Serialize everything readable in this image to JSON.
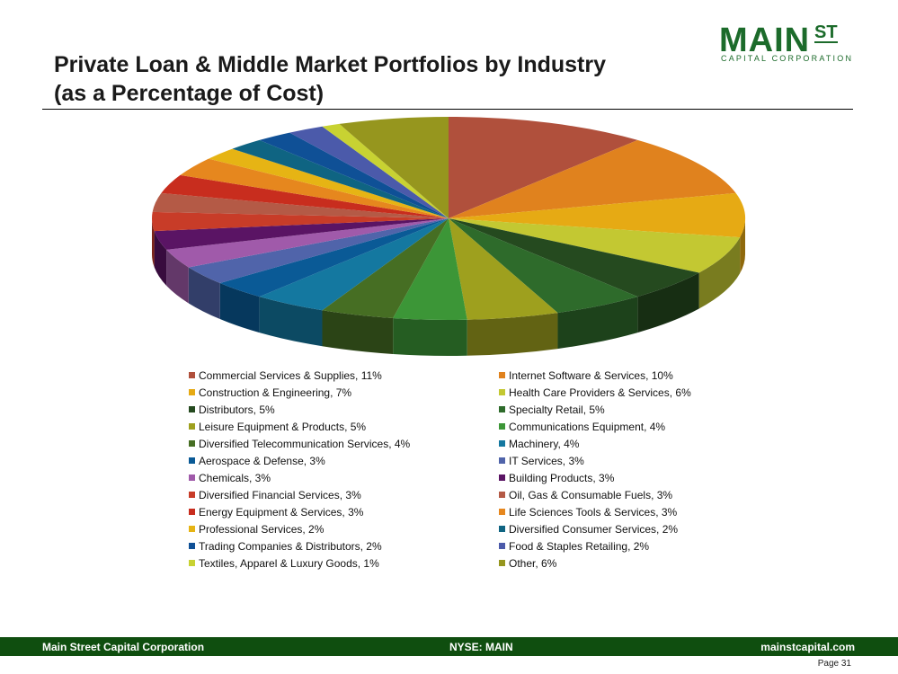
{
  "header": {
    "title": "Private Loan & Middle Market Portfolios by Industry\n(as a Percentage of Cost)"
  },
  "logo": {
    "main": "MAIN",
    "superscript": "ST",
    "subtitle": "CAPITAL CORPORATION",
    "color": "#1c6b2b"
  },
  "chart_data": {
    "type": "pie",
    "style": "3d",
    "legend_position": "bottom",
    "slices": [
      {
        "label": "Commercial Services & Supplies, 11%",
        "name": "Commercial Services & Supplies",
        "value": 11,
        "color": "#b0503c"
      },
      {
        "label": "Internet Software & Services, 10%",
        "name": "Internet Software & Services",
        "value": 10,
        "color": "#e0821e"
      },
      {
        "label": "Construction & Engineering, 7%",
        "name": "Construction & Engineering",
        "value": 7,
        "color": "#e6aa14"
      },
      {
        "label": "Health Care Providers & Services, 6%",
        "name": "Health Care Providers & Services",
        "value": 6,
        "color": "#c3c832"
      },
      {
        "label": "Distributors, 5%",
        "name": "Distributors",
        "value": 5,
        "color": "#254a1f"
      },
      {
        "label": "Specialty Retail, 5%",
        "name": "Specialty Retail",
        "value": 5,
        "color": "#2e6b2b"
      },
      {
        "label": "Leisure Equipment & Products, 5%",
        "name": "Leisure Equipment & Products",
        "value": 5,
        "color": "#9ea01e"
      },
      {
        "label": "Communications Equipment, 4%",
        "name": "Communications Equipment",
        "value": 4,
        "color": "#3c9637"
      },
      {
        "label": "Diversified Telecommunication Services, 4%",
        "name": "Diversified Telecommunication Services",
        "value": 4,
        "color": "#466e23"
      },
      {
        "label": "Machinery, 4%",
        "name": "Machinery",
        "value": 4,
        "color": "#1478a0"
      },
      {
        "label": "Aerospace & Defense, 3%",
        "name": "Aerospace & Defense",
        "value": 3,
        "color": "#0a5a96"
      },
      {
        "label": "IT Services, 3%",
        "name": "IT Services",
        "value": 3,
        "color": "#5064aa"
      },
      {
        "label": "Chemicals, 3%",
        "name": "Chemicals",
        "value": 3,
        "color": "#a05aaa"
      },
      {
        "label": "Building Products, 3%",
        "name": "Building Products",
        "value": 3,
        "color": "#5a1464"
      },
      {
        "label": "Diversified Financial Services, 3%",
        "name": "Diversified Financial Services",
        "value": 3,
        "color": "#c83c28"
      },
      {
        "label": "Oil, Gas & Consumable Fuels, 3%",
        "name": "Oil, Gas & Consumable Fuels",
        "value": 3,
        "color": "#b45a46"
      },
      {
        "label": "Energy Equipment & Services, 3%",
        "name": "Energy Equipment & Services",
        "value": 3,
        "color": "#c82d1e"
      },
      {
        "label": "Life Sciences Tools & Services, 3%",
        "name": "Life Sciences Tools & Services",
        "value": 3,
        "color": "#e6871e"
      },
      {
        "label": "Professional Services, 2%",
        "name": "Professional Services",
        "value": 2,
        "color": "#e6b414"
      },
      {
        "label": "Diversified Consumer Services, 2%",
        "name": "Diversified Consumer Services",
        "value": 2,
        "color": "#0f6482"
      },
      {
        "label": "Trading Companies & Distributors, 2%",
        "name": "Trading Companies & Distributors",
        "value": 2,
        "color": "#0f5096"
      },
      {
        "label": "Food & Staples Retailing, 2%",
        "name": "Food & Staples Retailing",
        "value": 2,
        "color": "#4b5aaa"
      },
      {
        "label": "Textiles, Apparel & Luxury Goods, 1%",
        "name": "Textiles, Apparel & Luxury Goods",
        "value": 1,
        "color": "#c8d232"
      },
      {
        "label": "Other, 6%",
        "name": "Other",
        "value": 6,
        "color": "#96961e"
      }
    ]
  },
  "footer": {
    "left": "Main Street Capital Corporation",
    "center": "NYSE: MAIN",
    "right": "mainstcapital.com",
    "page": "Page  31"
  }
}
